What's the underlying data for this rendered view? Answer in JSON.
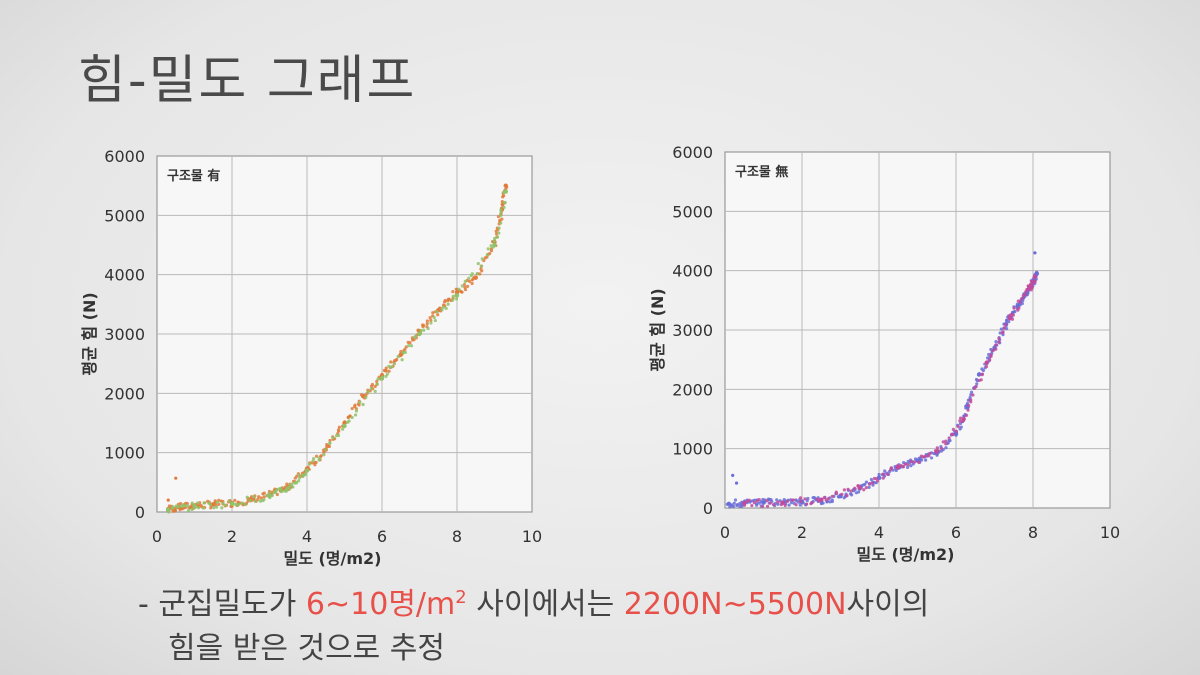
{
  "slide": {
    "title": "힘-밀도 그래프"
  },
  "caption": {
    "bullet": "-",
    "line1_a": "군집밀도가 ",
    "line1_hl1": "6~10명/m",
    "line1_hl1_sup": "2",
    "line1_b": " 사이에서는 ",
    "line1_hl2": "2200N~5500N",
    "line1_c": "사이의",
    "line2": "힘을 받은 것으로 추정",
    "highlight_color": "#e8504a"
  },
  "chart_data": [
    {
      "type": "scatter",
      "panel_label": "구조물 有",
      "xlabel": "밀도 (명/m2)",
      "ylabel": "평균 힘 (N)",
      "xlim": [
        0,
        10
      ],
      "ylim": [
        0,
        6000
      ],
      "xticks": [
        0,
        2,
        4,
        6,
        8,
        10
      ],
      "yticks": [
        0,
        1000,
        2000,
        3000,
        4000,
        5000,
        6000
      ],
      "grid": true,
      "series": [
        {
          "color": "#e07b3a",
          "x": [
            0.3,
            0.6,
            1.0,
            1.5,
            2.0,
            2.5,
            3.0,
            3.5,
            4.0,
            4.5,
            5.0,
            5.5,
            6.0,
            6.5,
            7.0,
            7.5,
            8.0,
            8.5,
            9.0,
            9.2,
            9.3
          ],
          "y": [
            50,
            80,
            110,
            130,
            150,
            200,
            290,
            420,
            730,
            1050,
            1500,
            1950,
            2300,
            2650,
            3050,
            3400,
            3700,
            3950,
            4550,
            5100,
            5500
          ]
        },
        {
          "color": "#8fc26a",
          "x": [
            0.3,
            1.0,
            2.0,
            3.0,
            3.5,
            4.0,
            5.0,
            6.0,
            7.0,
            8.0,
            9.0,
            9.3
          ],
          "y": [
            40,
            100,
            140,
            270,
            400,
            700,
            1450,
            2250,
            3000,
            3650,
            4500,
            5400
          ]
        }
      ],
      "outliers": {
        "x": [
          0.5,
          0.3
        ],
        "y": [
          570,
          200
        ]
      }
    },
    {
      "type": "scatter",
      "panel_label": "구조물 無",
      "xlabel": "밀도 (명/m2)",
      "ylabel": "평균 힘 (N)",
      "xlim": [
        0,
        10
      ],
      "ylim": [
        0,
        6000
      ],
      "xticks": [
        0,
        2,
        4,
        6,
        8,
        10
      ],
      "yticks": [
        0,
        1000,
        2000,
        3000,
        4000,
        5000,
        6000
      ],
      "grid": true,
      "series": [
        {
          "color": "#6a6ed8",
          "x": [
            0.1,
            0.5,
            1.0,
            1.5,
            2.0,
            2.5,
            3.0,
            3.5,
            4.0,
            4.5,
            5.0,
            5.5,
            6.0,
            6.3,
            6.6,
            7.0,
            7.3,
            7.6,
            7.8,
            8.0,
            8.1
          ],
          "y": [
            70,
            90,
            90,
            90,
            100,
            130,
            200,
            330,
            510,
            680,
            800,
            920,
            1250,
            1700,
            2250,
            2700,
            3100,
            3400,
            3600,
            3800,
            3950
          ]
        },
        {
          "color": "#c24a9a",
          "x": [
            0.5,
            1.5,
            2.5,
            3.5,
            4.5,
            5.5,
            6.2,
            6.8,
            7.4,
            7.9,
            8.05
          ],
          "y": [
            80,
            90,
            140,
            340,
            690,
            950,
            1500,
            2450,
            3200,
            3700,
            3900
          ]
        }
      ],
      "outliers": {
        "x": [
          0.2,
          0.3,
          8.05
        ],
        "y": [
          550,
          420,
          4300
        ]
      }
    }
  ]
}
